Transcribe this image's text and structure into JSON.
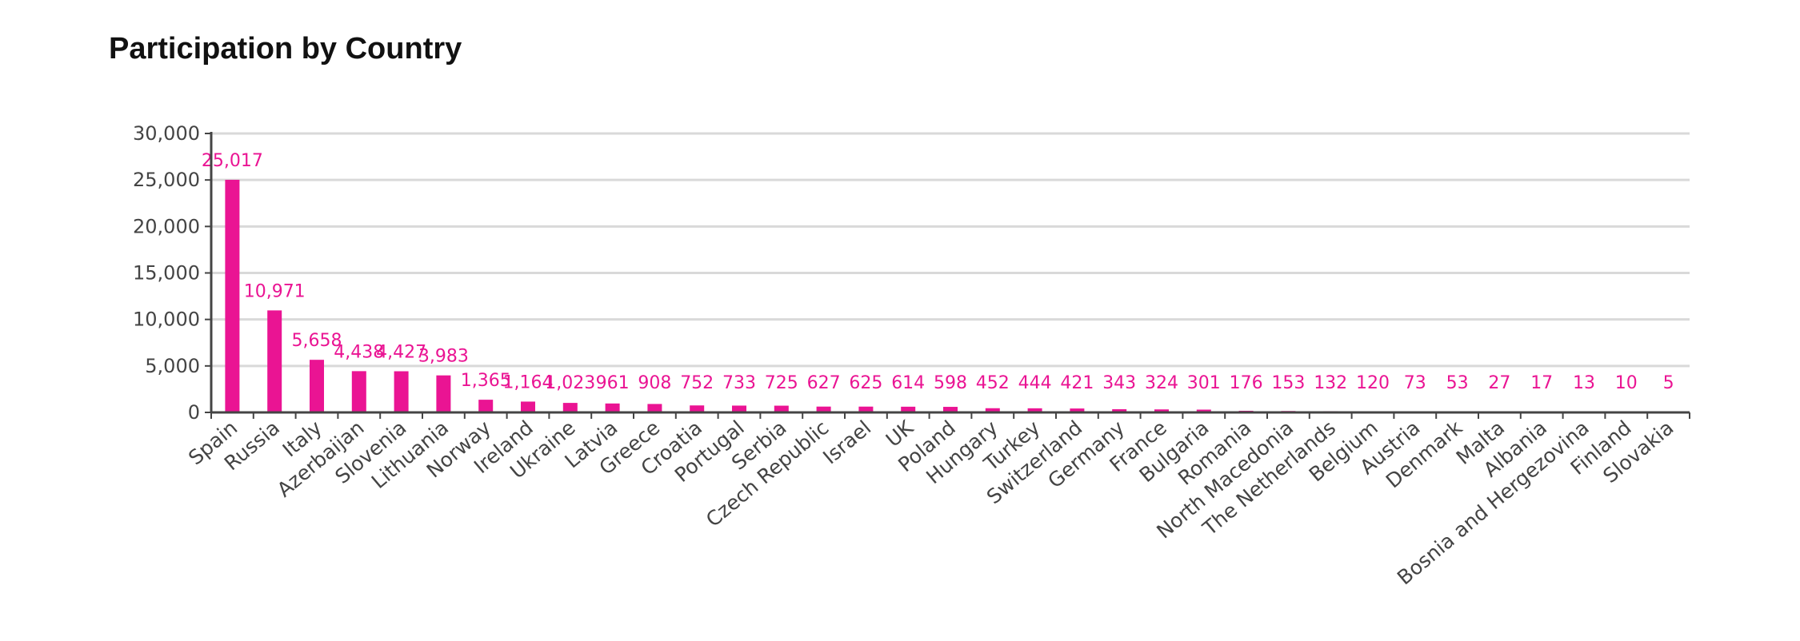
{
  "page_title": "Participation by Country",
  "colors": {
    "bar": "#EA1493",
    "grid": "#D9D9D9",
    "axis": "#444444"
  },
  "chart_data": {
    "type": "bar",
    "title": "Participation by Country",
    "xlabel": "",
    "ylabel": "",
    "ylim": [
      0,
      30000
    ],
    "yticks": [
      0,
      5000,
      10000,
      15000,
      20000,
      25000,
      30000
    ],
    "ytick_labels": [
      "0",
      "5,000",
      "10,000",
      "15,000",
      "20,000",
      "25,000",
      "30,000"
    ],
    "grid": true,
    "legend": "none",
    "categories": [
      "Spain",
      "Russia",
      "Italy",
      "Azerbaijan",
      "Slovenia",
      "Lithuania",
      "Norway",
      "Ireland",
      "Ukraine",
      "Latvia",
      "Greece",
      "Croatia",
      "Portugal",
      "Serbia",
      "Czech Republic",
      "Israel",
      "UK",
      "Poland",
      "Hungary",
      "Turkey",
      "Switzerland",
      "Germany",
      "France",
      "Bulgaria",
      "Romania",
      "North Macedonia",
      "The Netherlands",
      "Belgium",
      "Austria",
      "Denmark",
      "Malta",
      "Albania",
      "Bosnia and Hergezovina",
      "Finland",
      "Slovakia"
    ],
    "values": [
      25017,
      10971,
      5658,
      4438,
      4427,
      3983,
      1365,
      1164,
      1023,
      961,
      908,
      752,
      733,
      725,
      627,
      625,
      614,
      598,
      452,
      444,
      421,
      343,
      324,
      301,
      176,
      153,
      132,
      120,
      73,
      53,
      27,
      17,
      13,
      10,
      5
    ],
    "value_labels": [
      "25,017",
      "10,971",
      "5,658",
      "4,438",
      "4,427",
      "3,983",
      "1,365",
      "1,164",
      "1,023",
      "961",
      "908",
      "752",
      "733",
      "725",
      "627",
      "625",
      "614",
      "598",
      "452",
      "444",
      "421",
      "343",
      "324",
      "301",
      "176",
      "153",
      "132",
      "120",
      "73",
      "53",
      "27",
      "17",
      "13",
      "10",
      "5"
    ]
  }
}
